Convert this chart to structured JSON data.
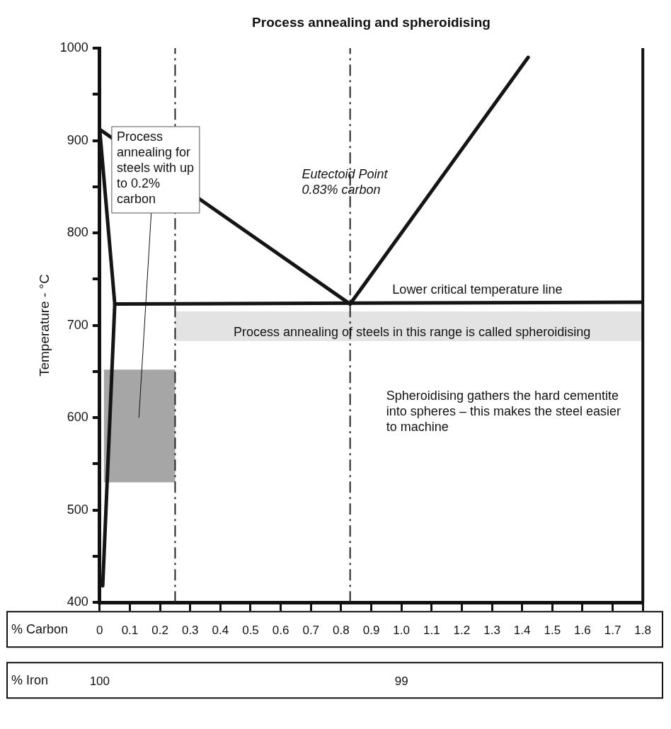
{
  "chart_data": {
    "type": "line",
    "title": "Process annealing and spheroidising",
    "ylabel": "Temperature - °C",
    "xlabel": "% Carbon",
    "x2label": "% Iron",
    "xlim": [
      0,
      1.8
    ],
    "xticks": [
      0,
      0.1,
      0.2,
      0.3,
      0.4,
      0.5,
      0.6,
      0.7,
      0.8,
      0.9,
      {
        "value": 1,
        "label": "1.0"
      },
      1.1,
      1.2,
      1.3,
      1.4,
      1.5,
      1.6,
      1.7,
      1.8
    ],
    "x2lim": [
      100,
      98.2
    ],
    "x2ticks": [
      100,
      99
    ],
    "ylim": [
      400,
      1000
    ],
    "yticks": [
      400,
      {
        "value": 450,
        "label": null
      },
      500,
      {
        "value": 550,
        "label": null
      },
      600,
      {
        "value": 650,
        "label": null
      },
      700,
      {
        "value": 750,
        "label": null
      },
      800,
      {
        "value": 850,
        "label": null
      },
      900,
      {
        "value": 950,
        "label": null
      },
      1000
    ],
    "grid": false,
    "legend": false,
    "marker": "none",
    "series": [
      {
        "color": "#151515",
        "x": [
          0,
          0.83
        ],
        "values": [
          912,
          723
        ]
      },
      {
        "color": "#151515",
        "x": [
          0.83,
          1.42
        ],
        "values": [
          723,
          990
        ]
      },
      {
        "color": "#151515",
        "x": [
          0.05,
          1.8
        ],
        "values": [
          723,
          725
        ]
      },
      {
        "color": "#151515",
        "x": [
          0,
          0.05,
          0.01
        ],
        "values": [
          912,
          723,
          418
        ]
      }
    ],
    "bands": [
      {
        "axis": "y",
        "from": 530,
        "to": 652,
        "color": "#a6a6a6"
      },
      {
        "axis": "y",
        "from": 683,
        "to": 715,
        "color": "#e3e3e3"
      }
    ],
    "ref_lines": [
      {
        "axis": "x",
        "value": 0.25,
        "color": "#222222",
        "line_style": "dashed"
      },
      {
        "axis": "x",
        "value": 0.83,
        "color": "#222222",
        "line_style": "dashed"
      }
    ],
    "annotations": [
      "Process annealing for steels with up to 0.2% carbon",
      "Eutectoid Point 0.83% carbon",
      "Lower critical temperature line",
      "Process annealing of steels in this range is called spheroidising",
      "Spheroidising gathers the hard cementite into spheres – this makes the steel easier to machine"
    ]
  }
}
